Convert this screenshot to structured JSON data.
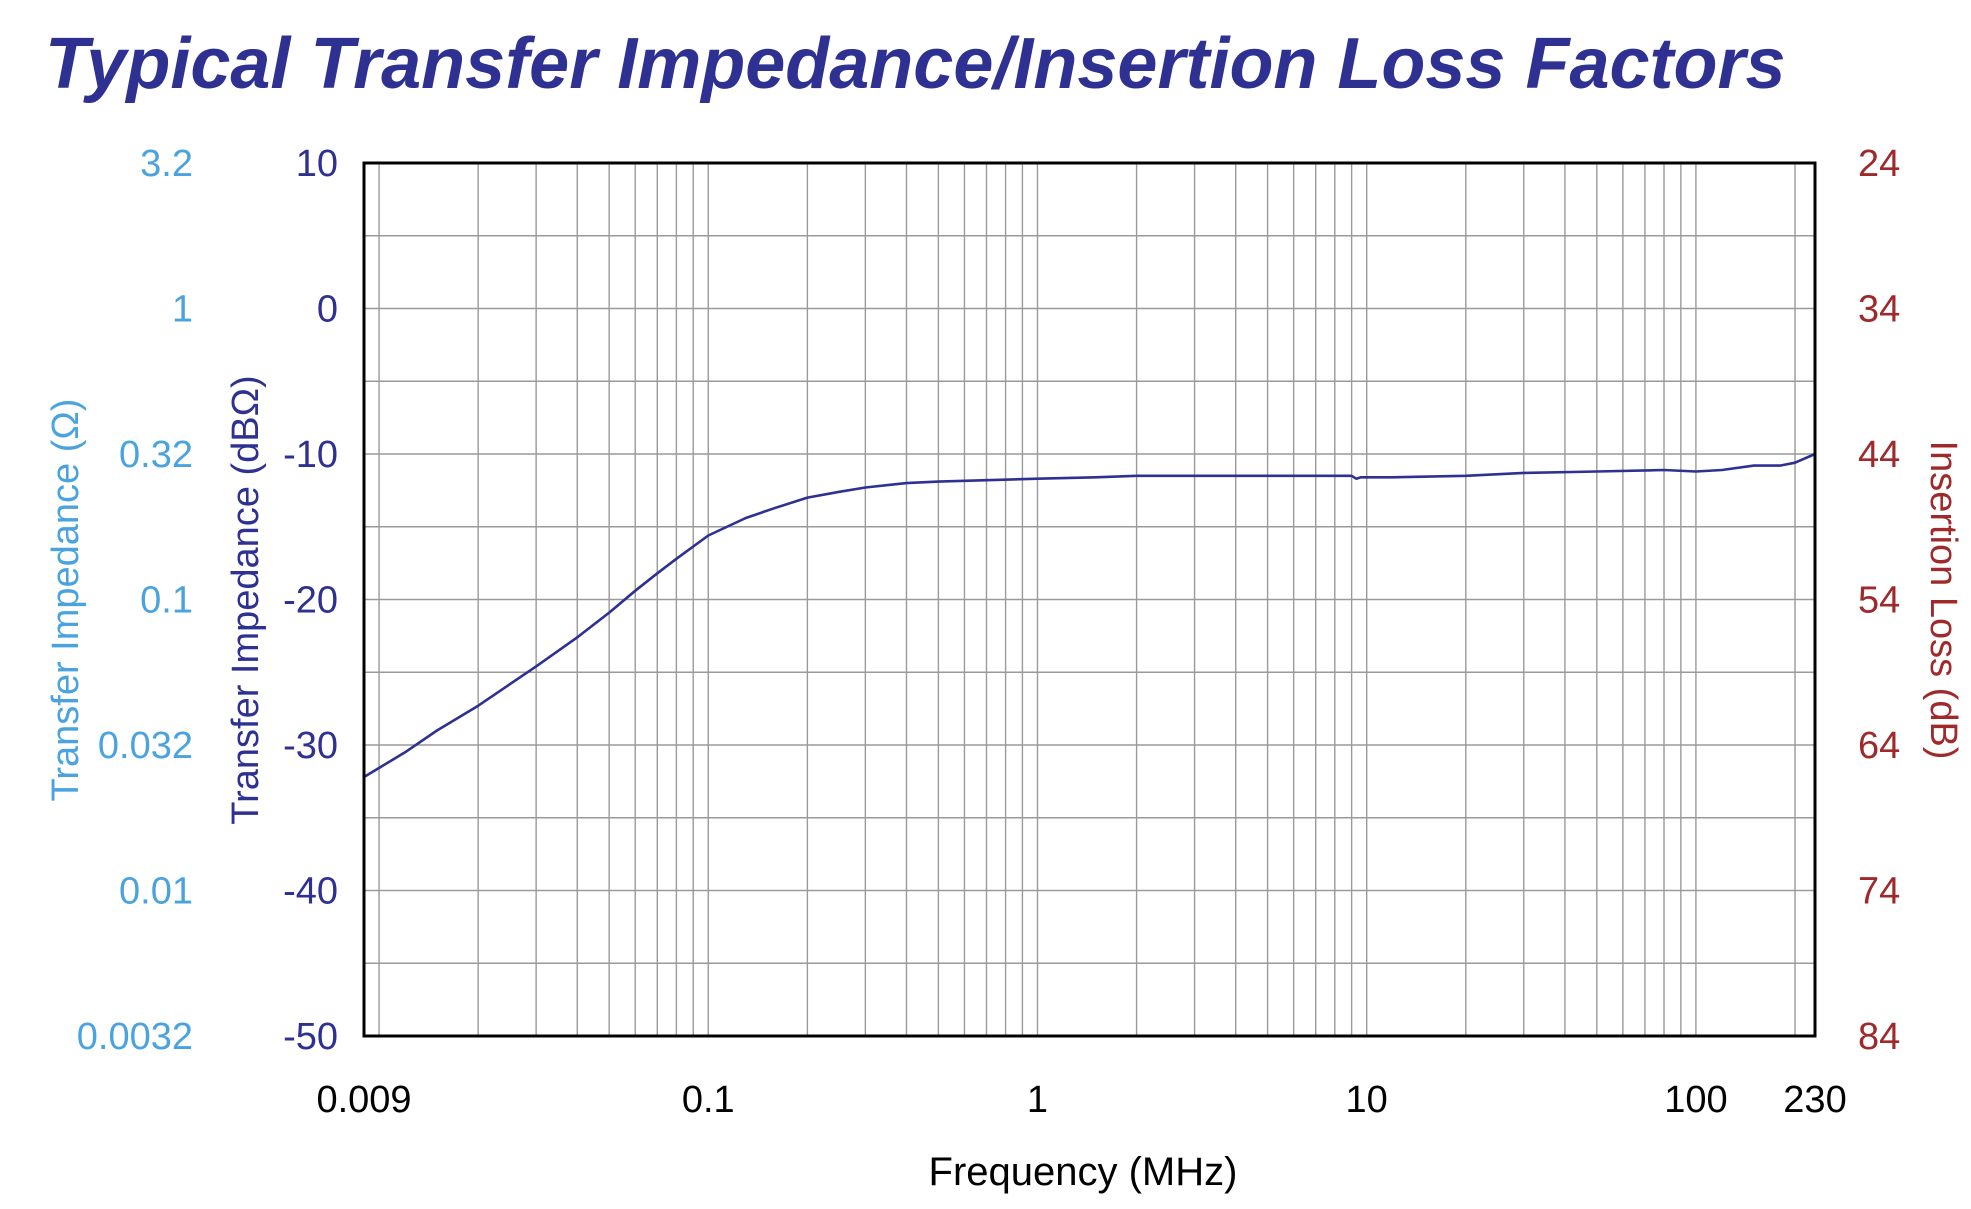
{
  "chart_data": {
    "type": "line",
    "title": "Typical Transfer Impedance/Insertion Loss Factors",
    "xlabel": "Frequency (MHz)",
    "x_scale": "log",
    "xlim": [
      0.009,
      230
    ],
    "x_tick_labels": [
      "0.009",
      "0.1",
      "1",
      "10",
      "100",
      "230"
    ],
    "x_ticks": [
      0.009,
      0.1,
      1,
      10,
      100,
      230
    ],
    "grid": true,
    "y_left_outer": {
      "label": "Transfer Impedance (Ω)",
      "tick_labels": [
        "3.2",
        "1",
        "0.32",
        "0.1",
        "0.032",
        "0.01",
        "0.0032"
      ],
      "color": "#4aa3df"
    },
    "y_left": {
      "label": "Transfer Impedance (dBΩ)",
      "ylim": [
        -50,
        10
      ],
      "tick_labels": [
        "10",
        "0",
        "-10",
        "-20",
        "-30",
        "-40",
        "-50"
      ],
      "ticks": [
        10,
        0,
        -10,
        -20,
        -30,
        -40,
        -50
      ],
      "color": "#2e3192"
    },
    "y_right": {
      "label": "Insertion Loss (dB)",
      "tick_labels": [
        "24",
        "34",
        "44",
        "54",
        "64",
        "74",
        "84"
      ],
      "color": "#9e2a2b"
    },
    "series": [
      {
        "color": "#2e3192",
        "x": [
          0.009,
          0.012,
          0.015,
          0.02,
          0.03,
          0.04,
          0.05,
          0.06,
          0.07,
          0.08,
          0.1,
          0.13,
          0.16,
          0.2,
          0.25,
          0.3,
          0.4,
          0.5,
          0.7,
          1,
          1.5,
          2,
          3,
          5,
          8,
          9,
          9.3,
          9.6,
          12,
          20,
          30,
          50,
          80,
          100,
          120,
          150,
          180,
          200,
          230
        ],
        "y": [
          -32.2,
          -30.5,
          -29.0,
          -27.3,
          -24.6,
          -22.6,
          -20.9,
          -19.4,
          -18.2,
          -17.2,
          -15.6,
          -14.4,
          -13.7,
          -13.0,
          -12.6,
          -12.3,
          -12.0,
          -11.9,
          -11.8,
          -11.7,
          -11.6,
          -11.5,
          -11.5,
          -11.5,
          -11.5,
          -11.5,
          -11.7,
          -11.6,
          -11.6,
          -11.5,
          -11.3,
          -11.2,
          -11.1,
          -11.2,
          -11.1,
          -10.8,
          -10.8,
          -10.6,
          -10.0
        ]
      }
    ]
  }
}
